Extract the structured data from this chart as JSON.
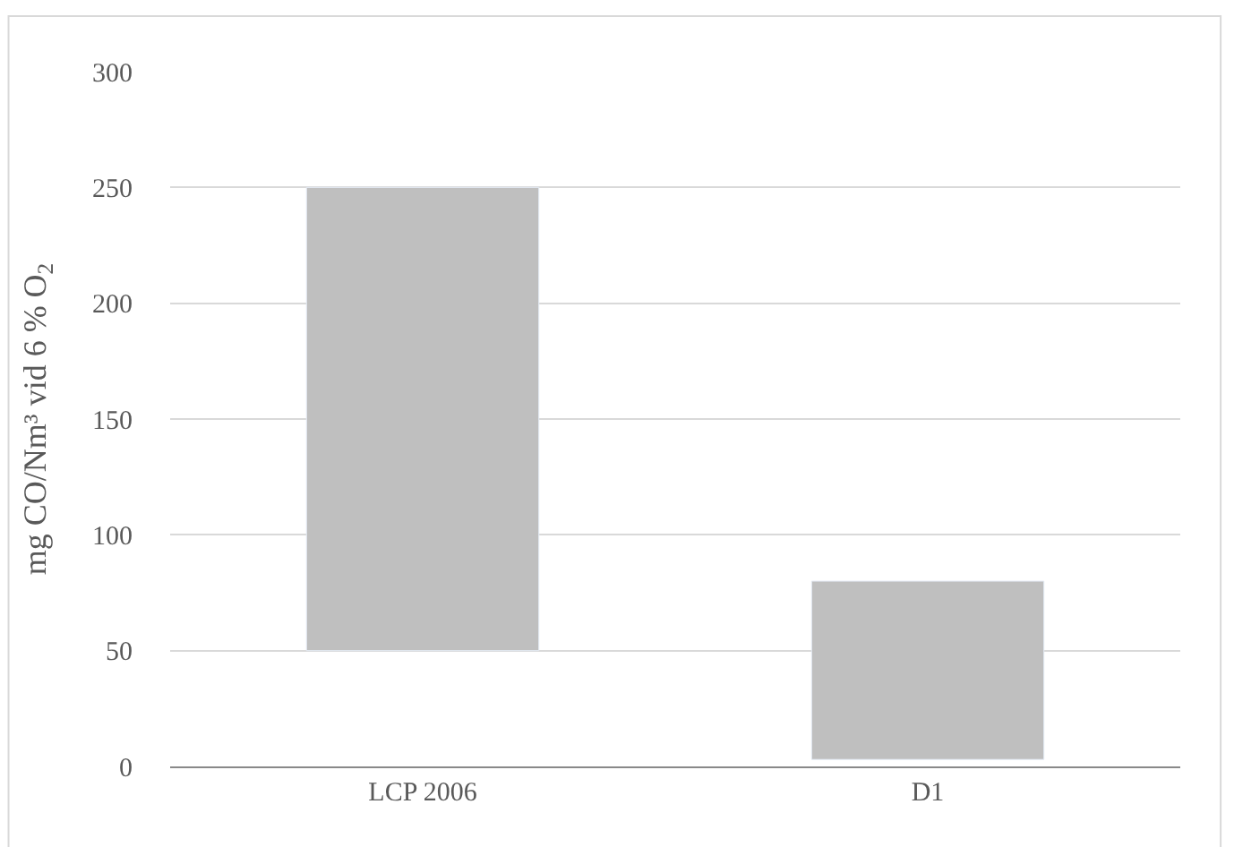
{
  "chart_data": {
    "type": "bar",
    "ylabel": "mg CO/Nm³ vid 6 % O$_{2}$",
    "categories": [
      "LCP 2006",
      "D1"
    ],
    "values": [
      200,
      77
    ],
    "base": [
      50,
      3
    ],
    "color": "#bfbfbf",
    "ylim": [
      0,
      300
    ],
    "yticks": [
      0,
      50,
      100,
      150,
      200,
      250,
      300
    ],
    "grid": "y",
    "legend": false
  }
}
